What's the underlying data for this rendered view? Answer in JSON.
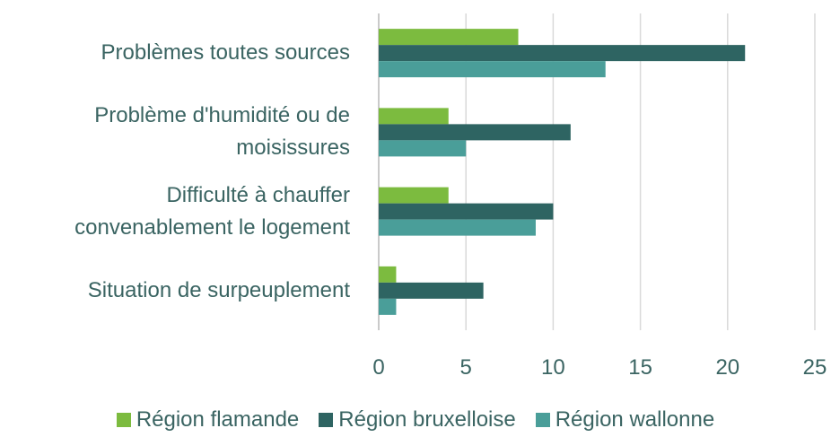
{
  "chart_data": {
    "type": "barh",
    "categories": [
      "Problèmes toutes sources",
      "Problème d'humidité ou de\nmoisissures",
      "Difficulté à chauffer\nconvenablement le logement",
      "Situation de surpeuplement"
    ],
    "series": [
      {
        "name": "Région flamande",
        "color": "#7cbb3f",
        "values": [
          8,
          4,
          4,
          1
        ]
      },
      {
        "name": "Région bruxelloise",
        "color": "#2e6462",
        "values": [
          21,
          11,
          10,
          6
        ]
      },
      {
        "name": "Région wallonne",
        "color": "#4a9e99",
        "values": [
          13,
          5,
          9,
          1
        ]
      }
    ],
    "xlim": [
      0,
      25
    ],
    "xticks": [
      0,
      5,
      10,
      15,
      20,
      25
    ],
    "grid": true
  }
}
